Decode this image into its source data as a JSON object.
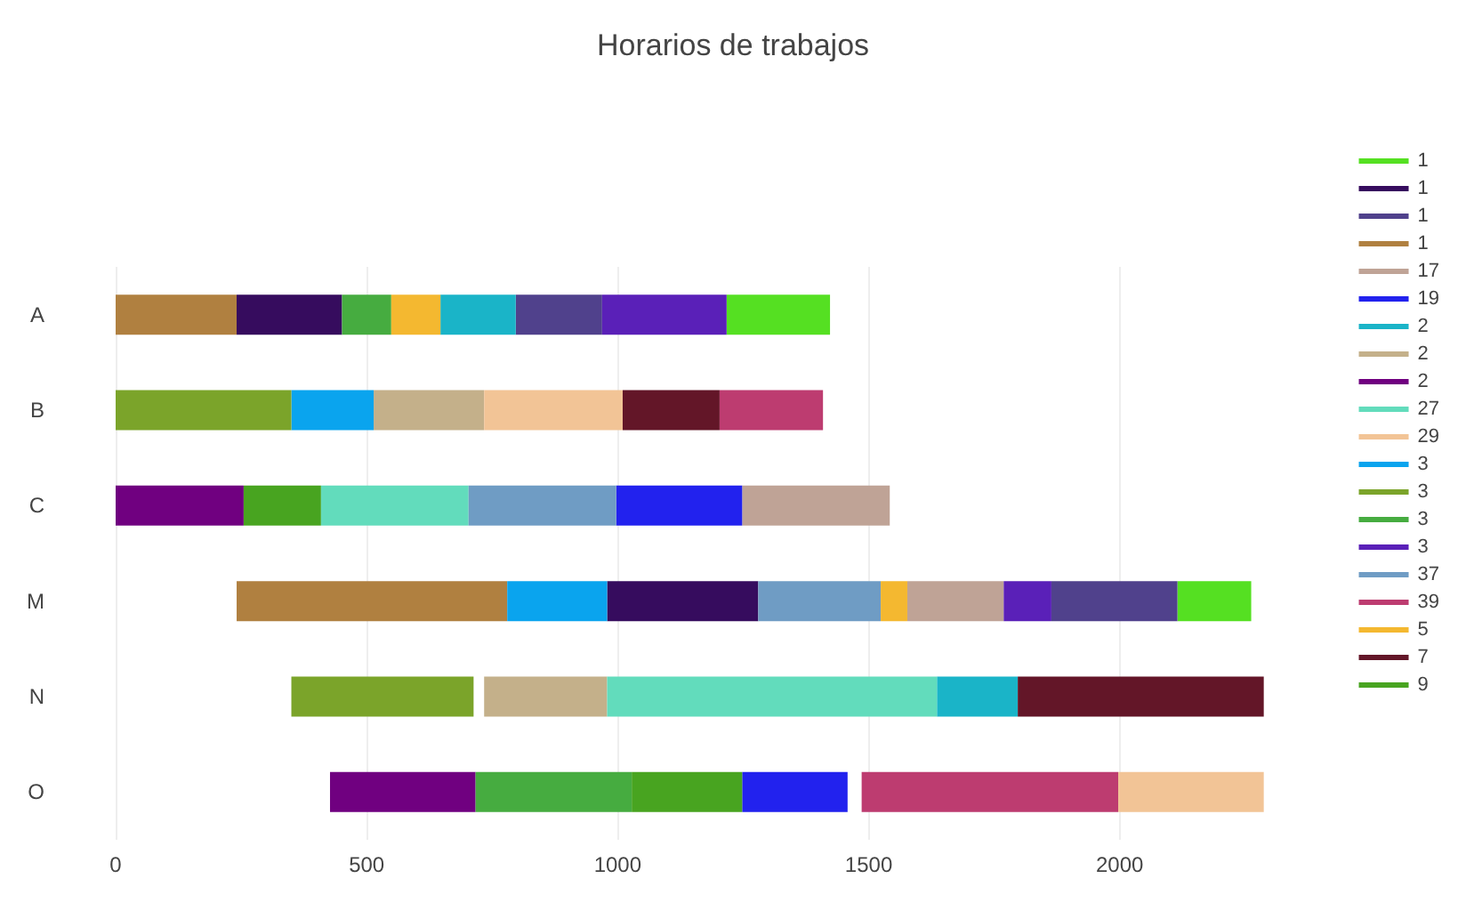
{
  "chart_data": {
    "type": "bar",
    "orientation": "horizontal",
    "title": "Horarios de trabajos",
    "categories": [
      "A",
      "B",
      "C",
      "M",
      "N",
      "O"
    ],
    "xlim": [
      0,
      2300
    ],
    "xticks": [
      0,
      500,
      1000,
      1500,
      2000
    ],
    "grid": "x",
    "legend": "right",
    "series": [
      {
        "name": "1",
        "color": "#55e022",
        "base": [
          1217,
          null,
          null,
          2115,
          null,
          null
        ],
        "values": [
          206,
          null,
          null,
          147,
          null,
          null
        ]
      },
      {
        "name": "1",
        "color": "#360c5e",
        "base": [
          241,
          null,
          null,
          979,
          null,
          null
        ],
        "values": [
          210,
          null,
          null,
          301,
          null,
          null
        ]
      },
      {
        "name": "1",
        "color": "#50418c",
        "base": [
          797,
          null,
          null,
          1864,
          null,
          null
        ],
        "values": [
          172,
          null,
          null,
          251,
          null,
          null
        ]
      },
      {
        "name": "1",
        "color": "#b08040",
        "base": [
          0,
          null,
          null,
          241,
          null,
          null
        ],
        "values": [
          241,
          null,
          null,
          539,
          null,
          null
        ]
      },
      {
        "name": "17",
        "color": "#bfa396",
        "base": [
          null,
          null,
          1248,
          1577,
          null,
          null
        ],
        "values": [
          null,
          null,
          294,
          192,
          null,
          null
        ]
      },
      {
        "name": "19",
        "color": "#2222ee",
        "base": [
          null,
          null,
          997,
          null,
          null,
          1248
        ],
        "values": [
          null,
          null,
          251,
          null,
          null,
          210
        ]
      },
      {
        "name": "2",
        "color": "#1ab4c8",
        "base": [
          647,
          null,
          null,
          null,
          1636,
          null
        ],
        "values": [
          150,
          null,
          null,
          null,
          161,
          null
        ]
      },
      {
        "name": "2",
        "color": "#c4b08a",
        "base": [
          null,
          514,
          null,
          null,
          734,
          null
        ],
        "values": [
          null,
          220,
          null,
          null,
          245,
          null
        ]
      },
      {
        "name": "2",
        "color": "#700080",
        "base": [
          null,
          null,
          0,
          null,
          null,
          427
        ],
        "values": [
          null,
          null,
          255,
          null,
          null,
          290
        ]
      },
      {
        "name": "27",
        "color": "#62dcbc",
        "base": [
          null,
          null,
          409,
          null,
          979,
          null
        ],
        "values": [
          null,
          null,
          294,
          null,
          657,
          null
        ]
      },
      {
        "name": "29",
        "color": "#f2c496",
        "base": [
          null,
          734,
          null,
          null,
          null,
          1997
        ],
        "values": [
          null,
          276,
          null,
          null,
          null,
          290
        ]
      },
      {
        "name": "3",
        "color": "#0aa4ee",
        "base": [
          null,
          350,
          null,
          780,
          null,
          null
        ],
        "values": [
          null,
          164,
          null,
          199,
          null,
          null
        ]
      },
      {
        "name": "3",
        "color": "#7ba42a",
        "base": [
          null,
          0,
          null,
          null,
          350,
          null
        ],
        "values": [
          null,
          350,
          null,
          null,
          363,
          null
        ]
      },
      {
        "name": "3",
        "color": "#46ac40",
        "base": [
          451,
          null,
          null,
          null,
          null,
          717
        ],
        "values": [
          98,
          null,
          null,
          null,
          null,
          311
        ]
      },
      {
        "name": "3",
        "color": "#5a20b8",
        "base": [
          969,
          null,
          null,
          1769,
          null,
          null
        ],
        "values": [
          248,
          null,
          null,
          95,
          null,
          null
        ]
      },
      {
        "name": "37",
        "color": "#6f9cc4",
        "base": [
          null,
          null,
          703,
          1280,
          null,
          null
        ],
        "values": [
          null,
          null,
          294,
          244,
          null,
          null
        ]
      },
      {
        "name": "39",
        "color": "#bd3c70",
        "base": [
          null,
          1203,
          null,
          null,
          null,
          1486
        ],
        "values": [
          null,
          206,
          null,
          null,
          null,
          511
        ]
      },
      {
        "name": "5",
        "color": "#f4b830",
        "base": [
          549,
          null,
          null,
          1524,
          null,
          null
        ],
        "values": [
          98,
          null,
          null,
          53,
          null,
          null
        ]
      },
      {
        "name": "7",
        "color": "#631628",
        "base": [
          null,
          1010,
          null,
          null,
          1797,
          null
        ],
        "values": [
          null,
          193,
          null,
          null,
          490,
          null
        ]
      },
      {
        "name": "9",
        "color": "#48a420",
        "base": [
          null,
          null,
          255,
          null,
          null,
          1028
        ],
        "values": [
          null,
          null,
          154,
          null,
          null,
          220
        ]
      }
    ]
  }
}
